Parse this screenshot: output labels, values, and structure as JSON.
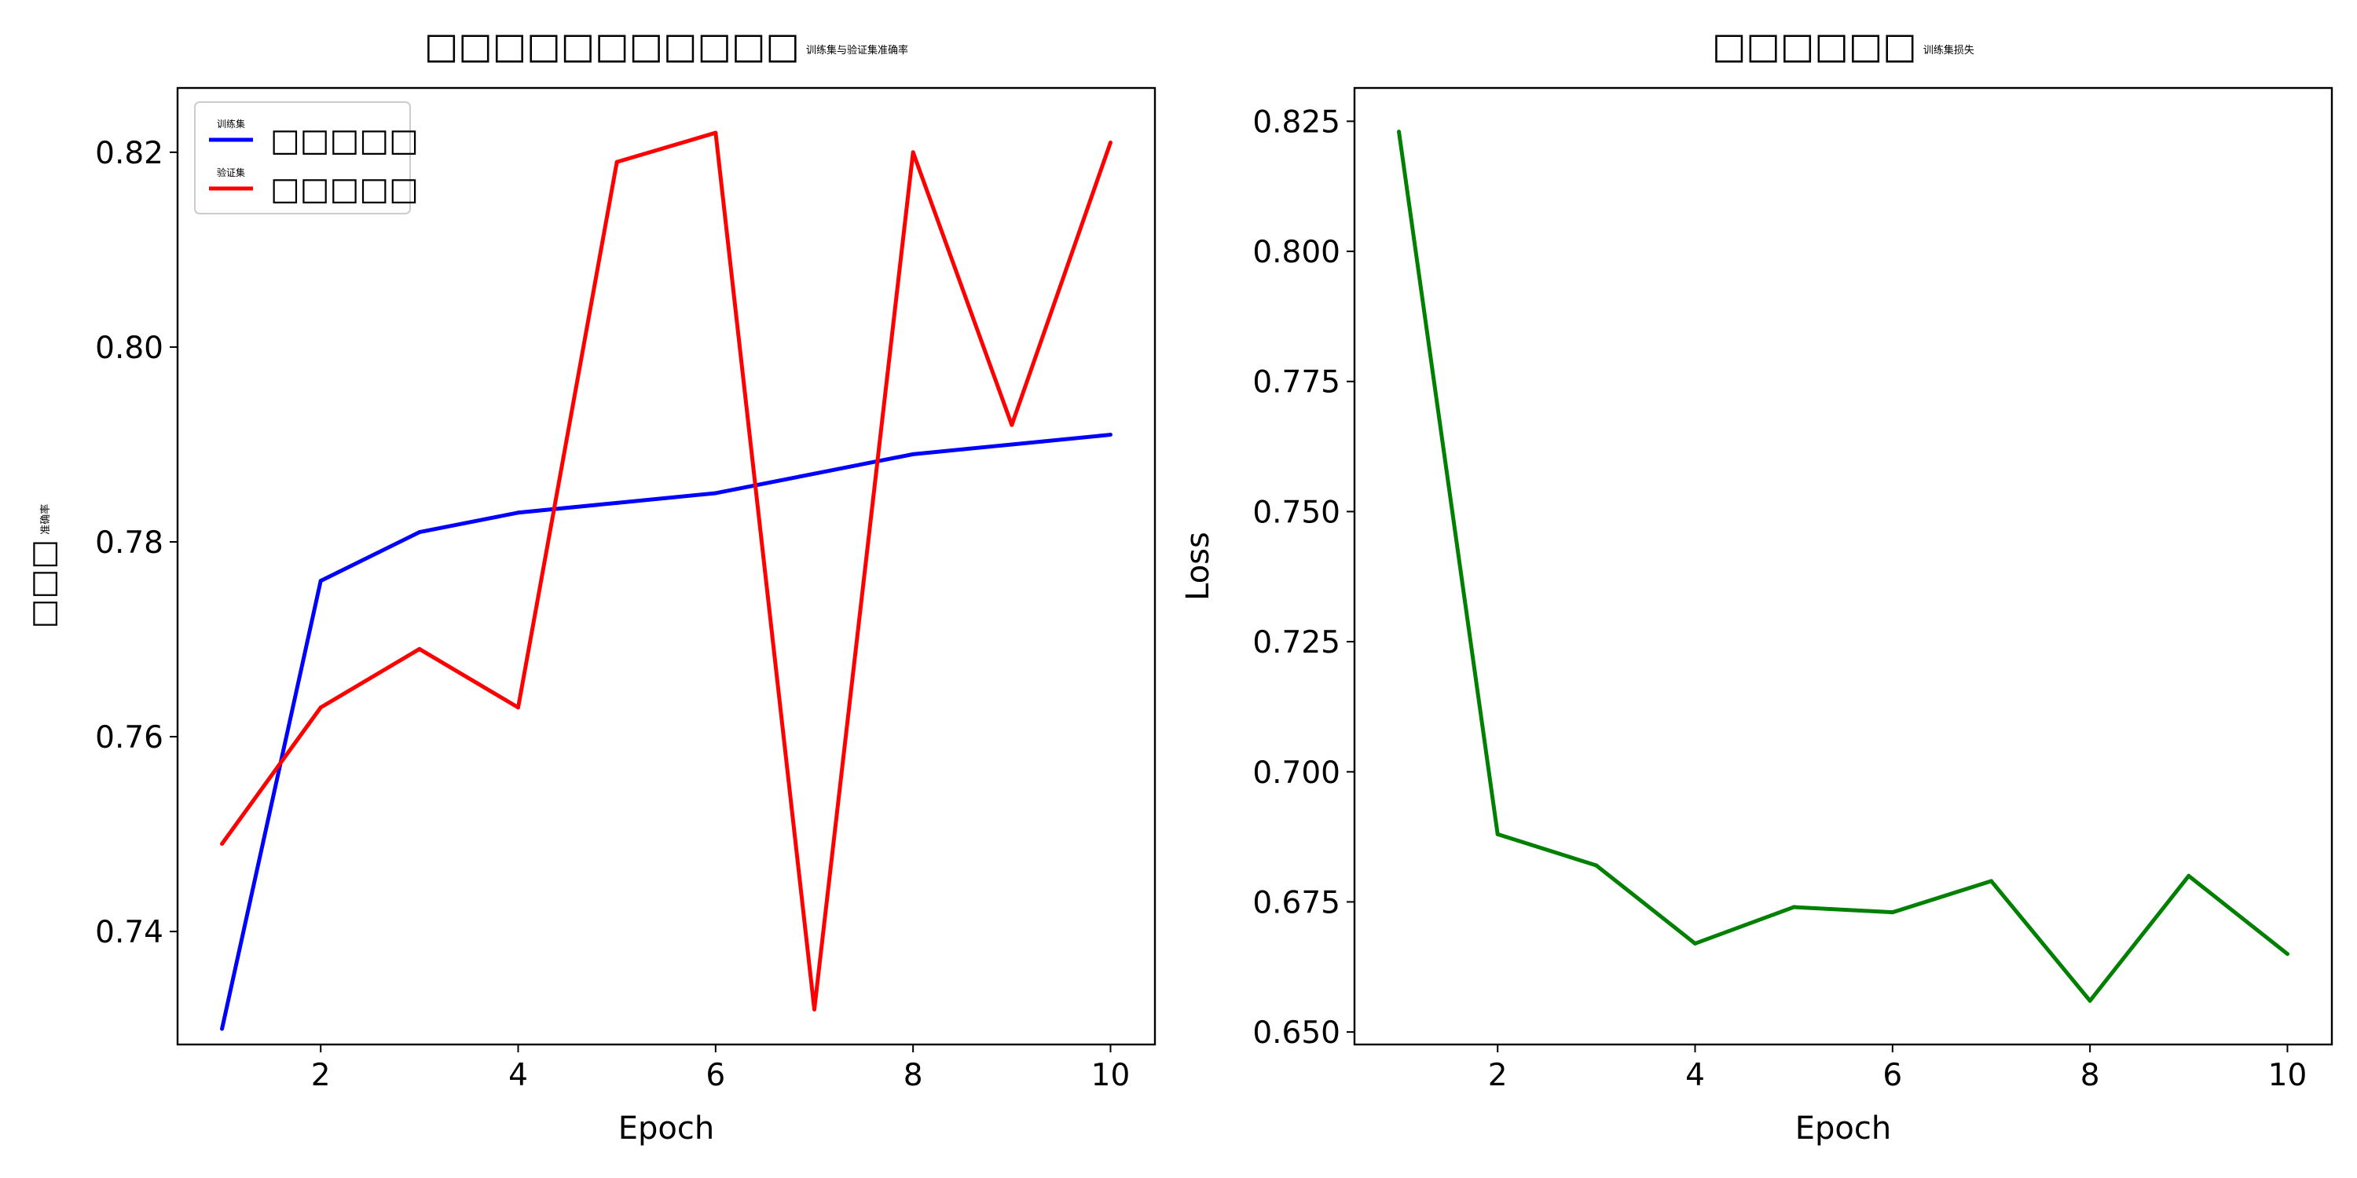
{
  "chart_data": [
    {
      "type": "line",
      "title": "□□□□□□□□□□□",
      "title_small": "训练集与验证集准确率",
      "xlabel": "Epoch",
      "ylabel": "□□□",
      "ylabel_small": "准确率",
      "xlim": [
        0.55,
        10.45
      ],
      "ylim": [
        0.7284,
        0.8266
      ],
      "xticks": [
        2,
        4,
        6,
        8,
        10
      ],
      "xtick_labels": [
        "2",
        "4",
        "6",
        "8",
        "10"
      ],
      "yticks": [
        0.74,
        0.76,
        0.78,
        0.8,
        0.82
      ],
      "ytick_labels": [
        "0.74",
        "0.76",
        "0.78",
        "0.80",
        "0.82"
      ],
      "legend": "top-left",
      "grid": false,
      "x": [
        1,
        2,
        3,
        4,
        5,
        6,
        7,
        8,
        9,
        10
      ],
      "series": [
        {
          "name": "□□□□□",
          "name_small": "训练集",
          "color": "#0000ff",
          "values": [
            0.73,
            0.776,
            0.781,
            0.783,
            0.784,
            0.785,
            0.787,
            0.789,
            0.79,
            0.791
          ]
        },
        {
          "name": "□□□□□",
          "name_small": "验证集",
          "color": "#ff0000",
          "values": [
            0.749,
            0.763,
            0.769,
            0.763,
            0.819,
            0.822,
            0.732,
            0.82,
            0.792,
            0.821
          ]
        }
      ]
    },
    {
      "type": "line",
      "title": "□□□□□□",
      "title_small": "训练集损失",
      "xlabel": "Epoch",
      "ylabel": "Loss",
      "xlim": [
        0.55,
        10.45
      ],
      "ylim": [
        0.6476,
        0.8314
      ],
      "xticks": [
        2,
        4,
        6,
        8,
        10
      ],
      "xtick_labels": [
        "2",
        "4",
        "6",
        "8",
        "10"
      ],
      "yticks": [
        0.65,
        0.675,
        0.7,
        0.725,
        0.75,
        0.775,
        0.8,
        0.825
      ],
      "ytick_labels": [
        "0.650",
        "0.675",
        "0.700",
        "0.725",
        "0.750",
        "0.775",
        "0.800",
        "0.825"
      ],
      "grid": false,
      "x": [
        1,
        2,
        3,
        4,
        5,
        6,
        7,
        8,
        9,
        10
      ],
      "series": [
        {
          "color": "#008000",
          "values": [
            0.823,
            0.688,
            0.682,
            0.667,
            0.674,
            0.673,
            0.679,
            0.656,
            0.68,
            0.665
          ]
        }
      ]
    }
  ]
}
